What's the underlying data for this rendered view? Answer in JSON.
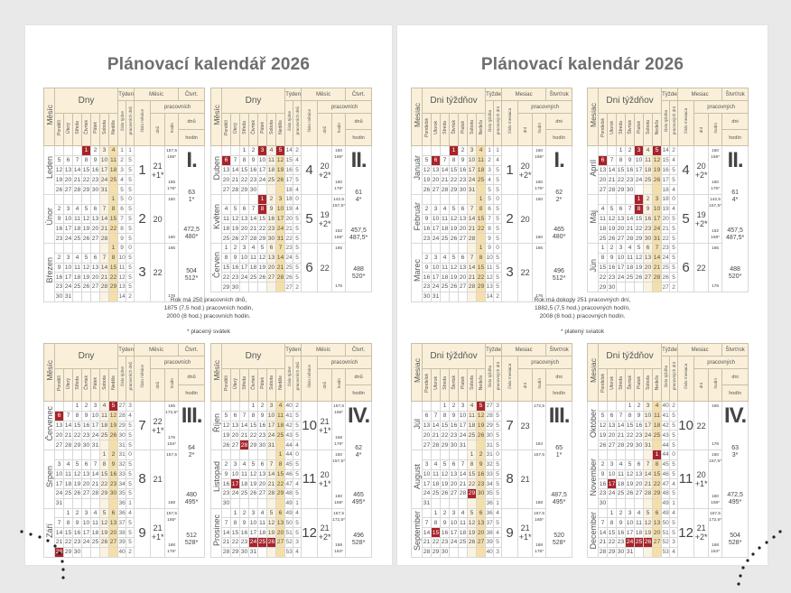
{
  "year": 2026,
  "colors": {
    "holiday": "#a8232a",
    "sunday": "#f6dfa6",
    "header": "#faf0da"
  },
  "pages": [
    {
      "title": "Plánovací kalendář 2026",
      "labels": {
        "month_col": "Měsíc",
        "days": "Dny",
        "week": "Týden",
        "month": "Měsíc",
        "quarter": "Čtvrt.",
        "week_no": "číslo týdne",
        "week_workdays": "pracovních dnů",
        "month_no": "číslo měsíce",
        "working": "pracovních",
        "m_days": "dnů",
        "m_hours": "hodin",
        "q_days": "dnů",
        "q_hours": "hodin",
        "weekdays": [
          "Pondělí",
          "Úterý",
          "Středa",
          "Čtvrtek",
          "Pátek",
          "Sobota",
          "Neděle"
        ]
      },
      "summary": [
        "Rok má 250 pracovních dnů,",
        "1875 (7,5 hod.) pracovních hodin,",
        "2000 (8 hod.) pracovních hodin."
      ],
      "footnote": "* placený svátek",
      "quarters": [
        {
          "roman": "I.",
          "days": "63",
          "days_x": "1*",
          "h75": "472,5",
          "h75x": "480*",
          "h8": "504",
          "h8x": "512*",
          "months": [
            {
              "name": "Leden",
              "num": "1",
              "days": "21",
              "days_x": "+1*",
              "h75": "157,5",
              "h75x": "165*",
              "h8": "168",
              "h8x": "176*",
              "holidays": [
                1
              ]
            },
            {
              "name": "Únor",
              "num": "2",
              "days": "20",
              "days_x": "",
              "h75": "150",
              "h75x": "",
              "h8": "160",
              "h8x": "",
              "holidays": []
            },
            {
              "name": "Březen",
              "num": "3",
              "days": "22",
              "days_x": "",
              "h75": "165",
              "h75x": "",
              "h8": "176",
              "h8x": "",
              "holidays": []
            }
          ]
        },
        {
          "roman": "II.",
          "days": "61",
          "days_x": "4*",
          "h75": "457,5",
          "h75x": "487,5*",
          "h8": "488",
          "h8x": "520*",
          "months": [
            {
              "name": "Duben",
              "num": "4",
              "days": "20",
              "days_x": "+2*",
              "h75": "150",
              "h75x": "165*",
              "h8": "160",
              "h8x": "176*",
              "holidays": [
                3,
                5,
                6
              ]
            },
            {
              "name": "Květen",
              "num": "5",
              "days": "19",
              "days_x": "+2*",
              "h75": "142,5",
              "h75x": "157,5*",
              "h8": "152",
              "h8x": "168*",
              "holidays": [
                1,
                8
              ]
            },
            {
              "name": "Červen",
              "num": "6",
              "days": "22",
              "days_x": "",
              "h75": "165",
              "h75x": "",
              "h8": "176",
              "h8x": "",
              "holidays": []
            }
          ]
        },
        {
          "roman": "III.",
          "days": "64",
          "days_x": "2*",
          "h75": "480",
          "h75x": "495*",
          "h8": "512",
          "h8x": "528*",
          "months": [
            {
              "name": "Červenec",
              "num": "7",
              "days": "22",
              "days_x": "+1*",
              "h75": "165",
              "h75x": "172,5*",
              "h8": "176",
              "h8x": "184*",
              "holidays": [
                5,
                6
              ]
            },
            {
              "name": "Srpen",
              "num": "8",
              "days": "21",
              "days_x": "",
              "h75": "157,5",
              "h75x": "",
              "h8": "168",
              "h8x": "",
              "holidays": []
            },
            {
              "name": "Září",
              "num": "9",
              "days": "21",
              "days_x": "+1*",
              "h75": "157,5",
              "h75x": "165*",
              "h8": "168",
              "h8x": "176*",
              "holidays": [
                28
              ]
            }
          ]
        },
        {
          "roman": "IV.",
          "days": "62",
          "days_x": "4*",
          "h75": "465",
          "h75x": "495*",
          "h8": "496",
          "h8x": "528*",
          "months": [
            {
              "name": "Říjen",
              "num": "10",
              "days": "21",
              "days_x": "+1*",
              "h75": "157,5",
              "h75x": "165*",
              "h8": "168",
              "h8x": "176*",
              "holidays": [
                28
              ]
            },
            {
              "name": "Listopad",
              "num": "11",
              "days": "20",
              "days_x": "+1*",
              "h75": "150",
              "h75x": "157,5*",
              "h8": "160",
              "h8x": "168*",
              "holidays": [
                17
              ]
            },
            {
              "name": "Prosinec",
              "num": "12",
              "days": "21",
              "days_x": "+2*",
              "h75": "157,5",
              "h75x": "172,5*",
              "h8": "168",
              "h8x": "184*",
              "holidays": [
                24,
                25,
                26
              ]
            }
          ]
        }
      ]
    },
    {
      "title": "Plánovací kalendár 2026",
      "labels": {
        "month_col": "Mesiac",
        "days": "Dni týždňov",
        "week": "Týždeň",
        "month": "Mesiac",
        "quarter": "Štvrťrok",
        "week_no": "číslo týždňa",
        "week_workdays": "pracovných dní",
        "month_no": "číslo mesiaca",
        "working": "pracovných",
        "m_days": "dní",
        "m_hours": "hodín",
        "q_days": "dni",
        "q_hours": "hodín",
        "weekdays": [
          "Pondelok",
          "Utorok",
          "Streda",
          "Štvrtok",
          "Piatok",
          "Sobota",
          "Nedeľa"
        ]
      },
      "summary": [
        "Rok má dokopy 251 pracovných dní,",
        "1882,5 (7,5 hod.) pracovných hodín,",
        "2008 (8 hod.) pracovných hodín."
      ],
      "footnote": "* platený sviatok",
      "quarters": [
        {
          "roman": "I.",
          "days": "62",
          "days_x": "2*",
          "h75": "465",
          "h75x": "480*",
          "h8": "496",
          "h8x": "512*",
          "months": [
            {
              "name": "Január",
              "num": "1",
              "days": "20",
              "days_x": "+2*",
              "h75": "150",
              "h75x": "165*",
              "h8": "160",
              "h8x": "176*",
              "holidays": [
                1,
                6
              ]
            },
            {
              "name": "Február",
              "num": "2",
              "days": "20",
              "days_x": "",
              "h75": "150",
              "h75x": "",
              "h8": "160",
              "h8x": "",
              "holidays": []
            },
            {
              "name": "Marec",
              "num": "3",
              "days": "22",
              "days_x": "",
              "h75": "165",
              "h75x": "",
              "h8": "176",
              "h8x": "",
              "holidays": []
            }
          ]
        },
        {
          "roman": "II.",
          "days": "61",
          "days_x": "4*",
          "h75": "457,5",
          "h75x": "487,5*",
          "h8": "488",
          "h8x": "520*",
          "months": [
            {
              "name": "Apríl",
              "num": "4",
              "days": "20",
              "days_x": "+2*",
              "h75": "150",
              "h75x": "165*",
              "h8": "160",
              "h8x": "176*",
              "holidays": [
                3,
                5,
                6
              ]
            },
            {
              "name": "Máj",
              "num": "5",
              "days": "19",
              "days_x": "+2*",
              "h75": "142,5",
              "h75x": "157,5*",
              "h8": "152",
              "h8x": "168*",
              "holidays": [
                1,
                8
              ]
            },
            {
              "name": "Jún",
              "num": "6",
              "days": "22",
              "days_x": "",
              "h75": "165",
              "h75x": "",
              "h8": "176",
              "h8x": "",
              "holidays": []
            }
          ]
        },
        {
          "roman": "III.",
          "days": "65",
          "days_x": "1*",
          "h75": "487,5",
          "h75x": "495*",
          "h8": "520",
          "h8x": "528*",
          "months": [
            {
              "name": "Júl",
              "num": "7",
              "days": "23",
              "days_x": "",
              "h75": "172,5",
              "h75x": "",
              "h8": "184",
              "h8x": "",
              "holidays": [
                5
              ]
            },
            {
              "name": "August",
              "num": "8",
              "days": "21",
              "days_x": "",
              "h75": "157,5",
              "h75x": "",
              "h8": "168",
              "h8x": "",
              "holidays": [
                29
              ]
            },
            {
              "name": "September",
              "num": "9",
              "days": "21",
              "days_x": "+1*",
              "h75": "157,5",
              "h75x": "165*",
              "h8": "168",
              "h8x": "176*",
              "holidays": [
                15
              ]
            }
          ]
        },
        {
          "roman": "IV.",
          "days": "63",
          "days_x": "3*",
          "h75": "472,5",
          "h75x": "495*",
          "h8": "504",
          "h8x": "528*",
          "months": [
            {
              "name": "Október",
              "num": "10",
              "days": "22",
              "days_x": "",
              "h75": "165",
              "h75x": "",
              "h8": "176",
              "h8x": "",
              "holidays": []
            },
            {
              "name": "November",
              "num": "11",
              "days": "20",
              "days_x": "+1*",
              "h75": "150",
              "h75x": "157,5*",
              "h8": "160",
              "h8x": "168*",
              "holidays": [
                1,
                17
              ]
            },
            {
              "name": "December",
              "num": "12",
              "days": "21",
              "days_x": "+2*",
              "h75": "157,5",
              "h75x": "172,5*",
              "h8": "168",
              "h8x": "184*",
              "holidays": [
                24,
                25,
                26
              ]
            }
          ]
        }
      ]
    }
  ]
}
